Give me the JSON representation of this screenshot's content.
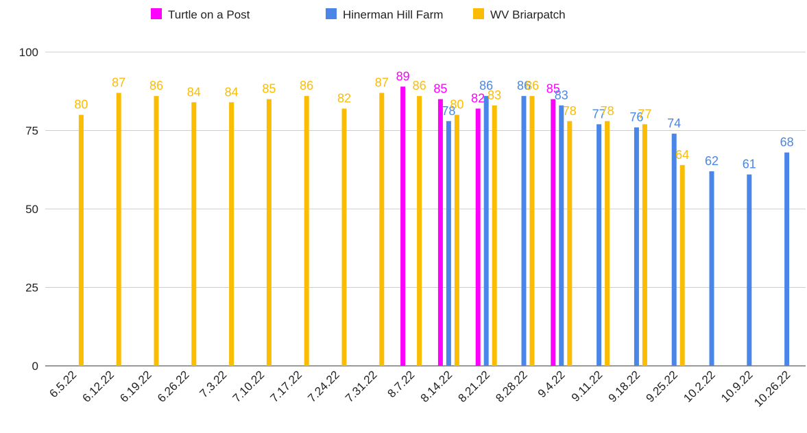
{
  "chart_data": {
    "type": "bar",
    "categories": [
      "6.5.22",
      "6.12.22",
      "6.19.22",
      "6.26.22",
      "7.3.22",
      "7.10.22",
      "7.17.22",
      "7.24.22",
      "7.31.22",
      "8.7.22",
      "8.14.22",
      "8.21.22",
      "8.28.22",
      "9.4.22",
      "9.11.22",
      "9.18.22",
      "9.25.22",
      "10.2.22",
      "10.9.22",
      "10.26.22"
    ],
    "series": [
      {
        "name": "Turtle on a Post",
        "color": "#ff00ff",
        "values": [
          null,
          null,
          null,
          null,
          null,
          null,
          null,
          null,
          null,
          89,
          85,
          82,
          null,
          85,
          null,
          null,
          null,
          null,
          null,
          null
        ]
      },
      {
        "name": "Hinerman Hill Farm",
        "color": "#4a86e8",
        "values": [
          null,
          null,
          null,
          null,
          null,
          null,
          null,
          null,
          null,
          null,
          78,
          86,
          86,
          83,
          77,
          76,
          74,
          62,
          61,
          68
        ]
      },
      {
        "name": "WV Briarpatch",
        "color": "#fbbc04",
        "values": [
          80,
          87,
          86,
          84,
          84,
          85,
          86,
          82,
          87,
          86,
          80,
          83,
          86,
          78,
          78,
          77,
          64,
          null,
          null,
          null
        ]
      }
    ],
    "ylim": [
      0,
      100
    ],
    "yticks": [
      0,
      25,
      50,
      75,
      100
    ],
    "grid": true,
    "legend": "top"
  }
}
